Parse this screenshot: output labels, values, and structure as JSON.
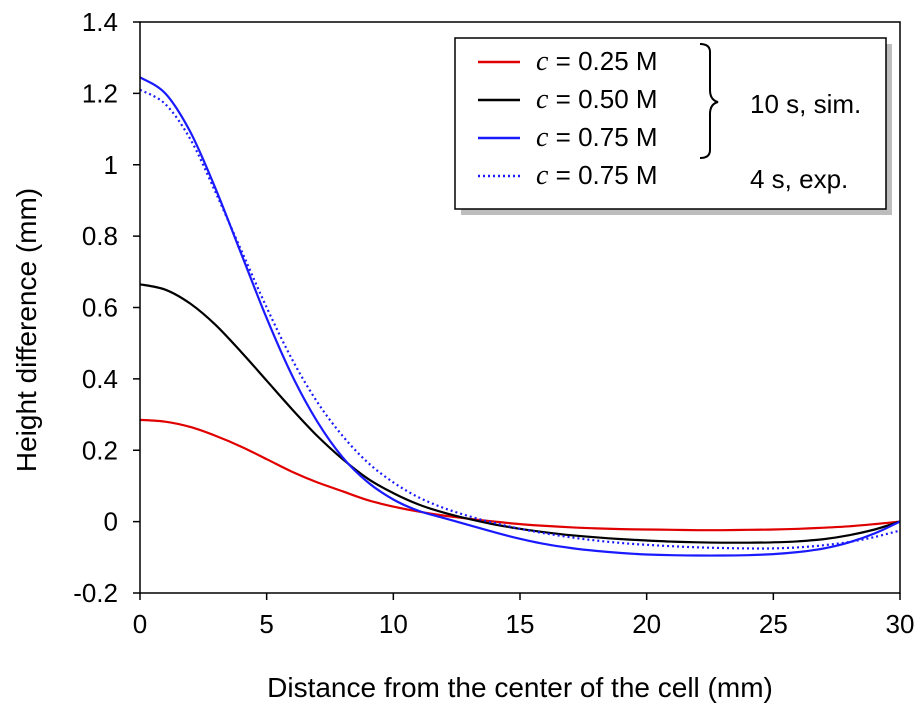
{
  "chart_data": {
    "type": "line",
    "title": "",
    "xlabel": "Distance from the center of the cell (mm)",
    "ylabel": "Height difference (mm)",
    "xlim": [
      0,
      30
    ],
    "ylim": [
      -0.2,
      1.4
    ],
    "x_ticks": [
      "0",
      "5",
      "10",
      "15",
      "20",
      "25",
      "30"
    ],
    "y_ticks": [
      "-0.2",
      "0",
      "0.2",
      "0.4",
      "0.6",
      "0.8",
      "1",
      "1.2",
      "1.4"
    ],
    "grid": false,
    "legend": {
      "placement": "top-right",
      "entries": [
        {
          "symbol": "c",
          "text": " = 0.25 M"
        },
        {
          "symbol": "c",
          "text": " = 0.50 M"
        },
        {
          "symbol": "c",
          "text": " = 0.75 M"
        },
        {
          "symbol": "c",
          "text": " = 0.75 M"
        }
      ],
      "group_labels": [
        "10 s, sim.",
        "4 s, exp."
      ]
    },
    "series": [
      {
        "color": "#e00000",
        "style": "solid",
        "x": [
          0,
          1,
          2,
          3,
          4,
          5,
          6,
          7,
          8,
          9,
          10,
          11,
          12,
          13,
          14,
          15,
          16,
          17,
          18,
          19,
          20,
          21,
          22,
          23,
          24,
          25,
          26,
          27,
          28,
          29,
          30
        ],
        "y": [
          0.285,
          0.28,
          0.265,
          0.24,
          0.21,
          0.175,
          0.14,
          0.11,
          0.085,
          0.06,
          0.042,
          0.028,
          0.017,
          0.008,
          0.0,
          -0.007,
          -0.012,
          -0.016,
          -0.019,
          -0.021,
          -0.022,
          -0.023,
          -0.024,
          -0.024,
          -0.023,
          -0.022,
          -0.02,
          -0.017,
          -0.013,
          -0.007,
          0.0
        ]
      },
      {
        "color": "#000000",
        "style": "solid",
        "x": [
          0,
          1,
          2,
          3,
          4,
          5,
          6,
          7,
          8,
          9,
          10,
          11,
          12,
          13,
          14,
          15,
          16,
          17,
          18,
          19,
          20,
          21,
          22,
          23,
          24,
          25,
          26,
          27,
          28,
          29,
          30
        ],
        "y": [
          0.665,
          0.65,
          0.61,
          0.55,
          0.475,
          0.395,
          0.315,
          0.24,
          0.175,
          0.12,
          0.08,
          0.048,
          0.025,
          0.007,
          -0.008,
          -0.02,
          -0.03,
          -0.038,
          -0.044,
          -0.049,
          -0.053,
          -0.056,
          -0.058,
          -0.059,
          -0.059,
          -0.058,
          -0.055,
          -0.049,
          -0.038,
          -0.022,
          0.0
        ]
      },
      {
        "color": "#1a1aff",
        "style": "solid",
        "x": [
          0,
          1,
          2,
          3,
          4,
          5,
          6,
          7,
          8,
          9,
          10,
          11,
          12,
          13,
          14,
          15,
          16,
          17,
          18,
          19,
          20,
          21,
          22,
          23,
          24,
          25,
          26,
          27,
          28,
          29,
          30
        ],
        "y": [
          1.245,
          1.2,
          1.09,
          0.93,
          0.75,
          0.57,
          0.41,
          0.28,
          0.18,
          0.11,
          0.062,
          0.03,
          0.01,
          -0.01,
          -0.03,
          -0.048,
          -0.063,
          -0.074,
          -0.082,
          -0.088,
          -0.092,
          -0.094,
          -0.095,
          -0.095,
          -0.094,
          -0.091,
          -0.085,
          -0.075,
          -0.058,
          -0.033,
          0.0
        ]
      },
      {
        "color": "#1a1aff",
        "style": "dotted",
        "x": [
          0,
          1,
          2,
          3,
          4,
          5,
          6,
          7,
          8,
          9,
          10,
          11,
          12,
          13,
          14,
          15,
          16,
          17,
          18,
          19,
          20,
          21,
          22,
          23,
          24,
          25,
          26,
          27,
          28,
          29,
          30
        ],
        "y": [
          1.21,
          1.17,
          1.07,
          0.92,
          0.76,
          0.6,
          0.455,
          0.335,
          0.24,
          0.165,
          0.11,
          0.068,
          0.038,
          0.015,
          -0.004,
          -0.02,
          -0.033,
          -0.044,
          -0.053,
          -0.06,
          -0.065,
          -0.069,
          -0.072,
          -0.074,
          -0.075,
          -0.075,
          -0.072,
          -0.066,
          -0.057,
          -0.043,
          -0.025
        ]
      }
    ]
  }
}
